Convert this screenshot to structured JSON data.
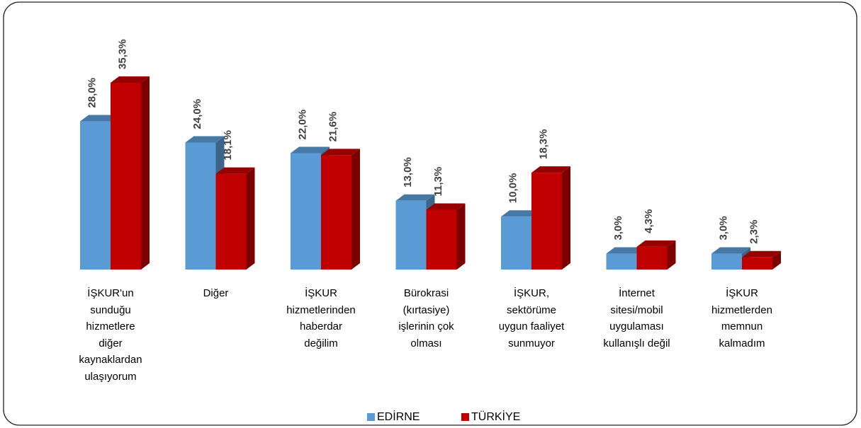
{
  "chart_data": {
    "type": "bar3d",
    "categories": [
      "İŞKUR'un\nsunduğu\nhizmetlere\ndiğer\nkaynaklardan\nulaşıyorum",
      "Diğer",
      "İŞKUR\nhizmetlerinden\nhaberdar\ndeğilim",
      "Bürokrasi\n(kırtasiye)\nişlerinin çok\nolması",
      "İŞKUR,\nsektörüme\nuygun faaliyet\nsunmuyor",
      "İnternet\nsitesi/mobil\nuygulaması\nkullanışlı değil",
      "İŞKUR\nhizmetlerden\nmemnun\nkalmadım"
    ],
    "series": [
      {
        "name": "EDİRNE",
        "color": "#5b9bd5",
        "values": [
          28.0,
          24.0,
          22.0,
          13.0,
          10.0,
          3.0,
          3.0
        ],
        "value_labels": [
          "28,0%",
          "24,0%",
          "22,0%",
          "13,0%",
          "10,0%",
          "3,0%",
          "3,0%"
        ]
      },
      {
        "name": "TÜRKİYE",
        "color": "#c00000",
        "values": [
          35.3,
          18.1,
          21.6,
          11.3,
          18.3,
          4.3,
          2.3
        ],
        "value_labels": [
          "35,3%",
          "18,1%",
          "21,6%",
          "11,3%",
          "18,3%",
          "4,3%",
          "2,3%"
        ]
      }
    ],
    "legend": "bottom"
  }
}
